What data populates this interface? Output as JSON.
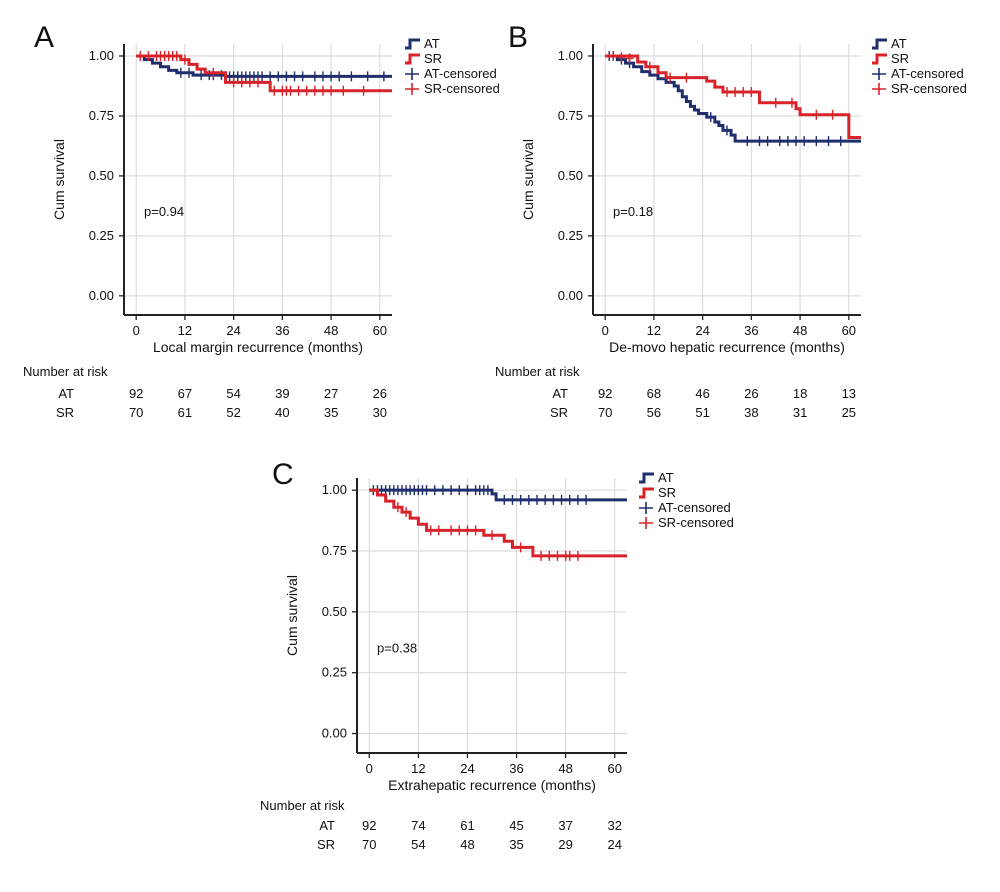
{
  "colors": {
    "AT": "#1f2f6e",
    "SR": "#d8232a"
  },
  "chart_data": [
    {
      "type": "line",
      "panel": "A",
      "xlabel": "Local margin recurrence (months)",
      "ylabel": "Cum survival",
      "x_ticks": [
        "0",
        "12",
        "24",
        "36",
        "48",
        "60"
      ],
      "y_ticks": [
        "0.00",
        "0.25",
        "0.50",
        "0.75",
        "1.00"
      ],
      "xlim": [
        -3,
        63
      ],
      "ylim": [
        -0.08,
        1.05
      ],
      "grid": true,
      "legend_position": "right",
      "p_value": "p=0.94",
      "legend": [
        "AT",
        "SR",
        "AT-censored",
        "SR-censored"
      ],
      "series": [
        {
          "name": "AT",
          "steps": [
            [
              0,
              1.0
            ],
            [
              2,
              0.985
            ],
            [
              4,
              0.97
            ],
            [
              6,
              0.955
            ],
            [
              8,
              0.94
            ],
            [
              10,
              0.93
            ],
            [
              14,
              0.92
            ],
            [
              22,
              0.915
            ],
            [
              63,
              0.915
            ]
          ],
          "censored": [
            [
              11,
              0.93
            ],
            [
              13,
              0.93
            ],
            [
              16,
              0.92
            ],
            [
              18,
              0.92
            ],
            [
              19,
              0.92
            ],
            [
              21,
              0.92
            ],
            [
              23,
              0.915
            ],
            [
              24,
              0.915
            ],
            [
              25,
              0.915
            ],
            [
              26,
              0.915
            ],
            [
              27,
              0.915
            ],
            [
              28,
              0.915
            ],
            [
              29,
              0.915
            ],
            [
              30,
              0.915
            ],
            [
              31,
              0.915
            ],
            [
              33,
              0.915
            ],
            [
              35,
              0.915
            ],
            [
              37,
              0.915
            ],
            [
              39,
              0.915
            ],
            [
              41,
              0.915
            ],
            [
              44,
              0.915
            ],
            [
              46,
              0.915
            ],
            [
              48,
              0.915
            ],
            [
              50,
              0.915
            ],
            [
              53,
              0.915
            ],
            [
              57,
              0.915
            ],
            [
              61,
              0.915
            ]
          ]
        },
        {
          "name": "SR",
          "steps": [
            [
              0,
              1.0
            ],
            [
              11,
              0.985
            ],
            [
              13,
              0.965
            ],
            [
              15,
              0.945
            ],
            [
              17,
              0.93
            ],
            [
              22,
              0.89
            ],
            [
              33,
              0.855
            ],
            [
              63,
              0.855
            ]
          ],
          "censored": [
            [
              1,
              1.0
            ],
            [
              3,
              1.0
            ],
            [
              5,
              1.0
            ],
            [
              6,
              1.0
            ],
            [
              7,
              1.0
            ],
            [
              8,
              1.0
            ],
            [
              9,
              1.0
            ],
            [
              10,
              1.0
            ],
            [
              12,
              0.985
            ],
            [
              19,
              0.93
            ],
            [
              24,
              0.89
            ],
            [
              26,
              0.89
            ],
            [
              28,
              0.89
            ],
            [
              30,
              0.89
            ],
            [
              34,
              0.855
            ],
            [
              36,
              0.855
            ],
            [
              37,
              0.855
            ],
            [
              38,
              0.855
            ],
            [
              40,
              0.855
            ],
            [
              42,
              0.855
            ],
            [
              44,
              0.855
            ],
            [
              46,
              0.855
            ],
            [
              48,
              0.855
            ],
            [
              51,
              0.855
            ],
            [
              56,
              0.855
            ]
          ]
        }
      ],
      "risk_table": {
        "label": "Number at risk",
        "rows": [
          {
            "name": "AT",
            "values": [
              "92",
              "67",
              "54",
              "39",
              "27",
              "26"
            ]
          },
          {
            "name": "SR",
            "values": [
              "70",
              "61",
              "52",
              "40",
              "35",
              "30"
            ]
          }
        ]
      }
    },
    {
      "type": "line",
      "panel": "B",
      "xlabel": "De-movo hepatic recurrence (months)",
      "ylabel": "Cum survival",
      "x_ticks": [
        "0",
        "12",
        "24",
        "36",
        "48",
        "60"
      ],
      "y_ticks": [
        "0.00",
        "0.25",
        "0.50",
        "0.75",
        "1.00"
      ],
      "xlim": [
        -3,
        63
      ],
      "ylim": [
        -0.08,
        1.05
      ],
      "grid": true,
      "legend_position": "right",
      "p_value": "p=0.18",
      "legend": [
        "AT",
        "SR",
        "AT-censored",
        "SR-censored"
      ],
      "series": [
        {
          "name": "AT",
          "steps": [
            [
              0,
              1.0
            ],
            [
              3,
              0.985
            ],
            [
              5,
              0.97
            ],
            [
              7,
              0.955
            ],
            [
              9,
              0.935
            ],
            [
              11,
              0.92
            ],
            [
              13,
              0.905
            ],
            [
              15,
              0.89
            ],
            [
              17,
              0.875
            ],
            [
              18,
              0.855
            ],
            [
              19,
              0.83
            ],
            [
              20,
              0.81
            ],
            [
              21,
              0.79
            ],
            [
              22,
              0.775
            ],
            [
              23,
              0.76
            ],
            [
              25,
              0.745
            ],
            [
              27,
              0.725
            ],
            [
              28,
              0.71
            ],
            [
              29,
              0.69
            ],
            [
              31,
              0.67
            ],
            [
              32,
              0.645
            ],
            [
              63,
              0.645
            ]
          ],
          "censored": [
            [
              1,
              1.0
            ],
            [
              2,
              1.0
            ],
            [
              4,
              0.985
            ],
            [
              6,
              0.97
            ],
            [
              26,
              0.745
            ],
            [
              30,
              0.69
            ],
            [
              35,
              0.645
            ],
            [
              38,
              0.645
            ],
            [
              40,
              0.645
            ],
            [
              43,
              0.645
            ],
            [
              45,
              0.645
            ],
            [
              47,
              0.645
            ],
            [
              49,
              0.645
            ],
            [
              52,
              0.645
            ],
            [
              55,
              0.645
            ],
            [
              58,
              0.645
            ]
          ]
        },
        {
          "name": "SR",
          "steps": [
            [
              0,
              1.0
            ],
            [
              8,
              0.975
            ],
            [
              10,
              0.955
            ],
            [
              13,
              0.93
            ],
            [
              15,
              0.91
            ],
            [
              25,
              0.895
            ],
            [
              27,
              0.87
            ],
            [
              29,
              0.85
            ],
            [
              38,
              0.805
            ],
            [
              47,
              0.78
            ],
            [
              48,
              0.755
            ],
            [
              60,
              0.66
            ],
            [
              63,
              0.66
            ]
          ],
          "censored": [
            [
              2,
              1.0
            ],
            [
              4,
              0.995
            ],
            [
              6,
              0.99
            ],
            [
              11,
              0.955
            ],
            [
              16,
              0.91
            ],
            [
              20,
              0.91
            ],
            [
              30,
              0.85
            ],
            [
              32,
              0.85
            ],
            [
              34,
              0.85
            ],
            [
              36,
              0.85
            ],
            [
              42,
              0.805
            ],
            [
              46,
              0.805
            ],
            [
              52,
              0.755
            ],
            [
              56,
              0.755
            ]
          ]
        }
      ],
      "risk_table": {
        "label": "Number at risk",
        "rows": [
          {
            "name": "AT",
            "values": [
              "92",
              "68",
              "46",
              "26",
              "18",
              "13"
            ]
          },
          {
            "name": "SR",
            "values": [
              "70",
              "56",
              "51",
              "38",
              "31",
              "25"
            ]
          }
        ]
      }
    },
    {
      "type": "line",
      "panel": "C",
      "xlabel": "Extrahepatic recurrence (months)",
      "ylabel": "Cum survival",
      "x_ticks": [
        "0",
        "12",
        "24",
        "36",
        "48",
        "60"
      ],
      "y_ticks": [
        "0.00",
        "0.25",
        "0.50",
        "0.75",
        "1.00"
      ],
      "xlim": [
        -3,
        63
      ],
      "ylim": [
        -0.08,
        1.05
      ],
      "grid": true,
      "legend_position": "right",
      "p_value": "p=0.38",
      "legend": [
        "AT",
        "SR",
        "AT-censored",
        "SR-censored"
      ],
      "series": [
        {
          "name": "AT",
          "steps": [
            [
              0,
              1.0
            ],
            [
              30,
              0.985
            ],
            [
              31,
              0.96
            ],
            [
              63,
              0.96
            ]
          ],
          "censored": [
            [
              1,
              1.0
            ],
            [
              2,
              1.0
            ],
            [
              3,
              1.0
            ],
            [
              4,
              1.0
            ],
            [
              5,
              1.0
            ],
            [
              6,
              1.0
            ],
            [
              7,
              1.0
            ],
            [
              8,
              1.0
            ],
            [
              9,
              1.0
            ],
            [
              10,
              1.0
            ],
            [
              11,
              1.0
            ],
            [
              12,
              1.0
            ],
            [
              13,
              1.0
            ],
            [
              14,
              1.0
            ],
            [
              16,
              1.0
            ],
            [
              18,
              1.0
            ],
            [
              20,
              1.0
            ],
            [
              22,
              1.0
            ],
            [
              24,
              1.0
            ],
            [
              26,
              1.0
            ],
            [
              27,
              1.0
            ],
            [
              28,
              1.0
            ],
            [
              29,
              1.0
            ],
            [
              33,
              0.96
            ],
            [
              35,
              0.96
            ],
            [
              37,
              0.96
            ],
            [
              39,
              0.96
            ],
            [
              41,
              0.96
            ],
            [
              43,
              0.96
            ],
            [
              45,
              0.96
            ],
            [
              47,
              0.96
            ],
            [
              49,
              0.96
            ],
            [
              51,
              0.96
            ],
            [
              53,
              0.96
            ]
          ]
        },
        {
          "name": "SR",
          "steps": [
            [
              0,
              1.0
            ],
            [
              2,
              0.98
            ],
            [
              4,
              0.955
            ],
            [
              6,
              0.93
            ],
            [
              8,
              0.91
            ],
            [
              10,
              0.885
            ],
            [
              12,
              0.86
            ],
            [
              14,
              0.835
            ],
            [
              28,
              0.815
            ],
            [
              33,
              0.79
            ],
            [
              35,
              0.765
            ],
            [
              40,
              0.73
            ],
            [
              63,
              0.73
            ]
          ],
          "censored": [
            [
              7,
              0.93
            ],
            [
              9,
              0.91
            ],
            [
              15,
              0.835
            ],
            [
              17,
              0.835
            ],
            [
              20,
              0.835
            ],
            [
              22,
              0.835
            ],
            [
              24,
              0.835
            ],
            [
              26,
              0.835
            ],
            [
              30,
              0.815
            ],
            [
              37,
              0.765
            ],
            [
              42,
              0.73
            ],
            [
              44,
              0.73
            ],
            [
              46,
              0.73
            ],
            [
              48,
              0.73
            ],
            [
              49,
              0.73
            ],
            [
              51,
              0.73
            ]
          ]
        }
      ],
      "risk_table": {
        "label": "Number at risk",
        "rows": [
          {
            "name": "AT",
            "values": [
              "92",
              "74",
              "61",
              "45",
              "37",
              "32"
            ]
          },
          {
            "name": "SR",
            "values": [
              "70",
              "54",
              "48",
              "35",
              "29",
              "24"
            ]
          }
        ]
      }
    }
  ]
}
